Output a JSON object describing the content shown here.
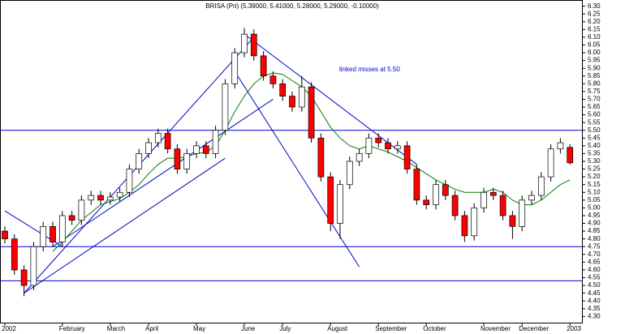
{
  "chart_data": {
    "type": "candlestick",
    "title": "BRISA (Pri) (5.39000, 5.41000, 5.28000, 5.29000, -0.10000)",
    "annotation": "linked misses at 5.50",
    "categories": [
      "2002",
      null,
      null,
      null,
      null,
      null,
      "February",
      null,
      null,
      null,
      null,
      "March",
      null,
      null,
      null,
      "April",
      null,
      null,
      null,
      null,
      "May",
      null,
      null,
      null,
      null,
      "June",
      null,
      null,
      null,
      "July",
      null,
      null,
      null,
      null,
      "August",
      null,
      null,
      null,
      null,
      "September",
      null,
      null,
      null,
      null,
      "October",
      null,
      null,
      null,
      null,
      null,
      "November",
      null,
      null,
      null,
      "December",
      null,
      null,
      null,
      null,
      "2003"
    ],
    "open": [
      4.85,
      4.8,
      4.6,
      4.5,
      4.75,
      4.88,
      4.78,
      4.95,
      4.92,
      5.05,
      5.08,
      5.05,
      5.07,
      5.1,
      5.25,
      5.35,
      5.42,
      5.48,
      5.38,
      5.25,
      5.35,
      5.4,
      5.35,
      5.5,
      5.8,
      6.0,
      6.12,
      5.98,
      5.85,
      5.8,
      5.72,
      5.65,
      5.78,
      5.45,
      5.2,
      4.9,
      5.15,
      5.3,
      5.35,
      5.45,
      5.42,
      5.38,
      5.4,
      5.25,
      5.05,
      5.02,
      5.15,
      5.08,
      4.95,
      4.82,
      5.0,
      5.1,
      5.08,
      4.95,
      4.88,
      5.05,
      5.08,
      5.2,
      5.38,
      5.39
    ],
    "high": [
      4.88,
      4.83,
      4.63,
      4.78,
      4.91,
      4.91,
      4.98,
      4.98,
      5.08,
      5.11,
      5.11,
      5.1,
      5.13,
      5.28,
      5.38,
      5.45,
      5.51,
      5.51,
      5.41,
      5.38,
      5.43,
      5.43,
      5.53,
      5.83,
      6.03,
      6.16,
      6.15,
      6.01,
      5.88,
      5.83,
      5.75,
      5.85,
      5.81,
      5.48,
      5.23,
      5.18,
      5.33,
      5.38,
      5.48,
      5.48,
      5.45,
      5.43,
      5.43,
      5.28,
      5.08,
      5.18,
      5.18,
      5.11,
      4.98,
      5.03,
      5.13,
      5.13,
      5.11,
      4.98,
      5.08,
      5.11,
      5.23,
      5.41,
      5.45,
      5.41
    ],
    "low": [
      4.77,
      4.57,
      4.43,
      4.47,
      4.72,
      4.75,
      4.75,
      4.89,
      4.89,
      5.02,
      5.02,
      5.02,
      5.04,
      5.07,
      5.22,
      5.32,
      5.39,
      5.35,
      5.22,
      5.22,
      5.32,
      5.32,
      5.32,
      5.47,
      5.77,
      5.97,
      5.95,
      5.82,
      5.77,
      5.69,
      5.62,
      5.62,
      5.42,
      5.17,
      4.85,
      4.8,
      5.12,
      5.27,
      5.32,
      5.39,
      5.35,
      5.35,
      5.22,
      5.02,
      4.99,
      4.99,
      5.05,
      4.92,
      4.78,
      4.79,
      4.97,
      5.05,
      4.92,
      4.8,
      4.85,
      5.02,
      5.05,
      5.17,
      5.35,
      5.28
    ],
    "close": [
      4.8,
      4.6,
      4.5,
      4.75,
      4.88,
      4.78,
      4.95,
      4.92,
      5.05,
      5.08,
      5.05,
      5.07,
      5.1,
      5.25,
      5.35,
      5.42,
      5.48,
      5.38,
      5.25,
      5.35,
      5.4,
      5.35,
      5.5,
      5.8,
      6.0,
      6.12,
      5.98,
      5.85,
      5.8,
      5.72,
      5.65,
      5.78,
      5.45,
      5.2,
      4.9,
      5.15,
      5.3,
      5.35,
      5.45,
      5.42,
      5.38,
      5.4,
      5.25,
      5.05,
      5.02,
      5.15,
      5.08,
      4.95,
      4.82,
      5.0,
      5.1,
      5.08,
      4.95,
      4.88,
      5.05,
      5.08,
      5.2,
      5.38,
      5.42,
      5.29
    ],
    "moving_average": {
      "color": "#008000",
      "values": [
        null,
        null,
        null,
        null,
        null,
        4.72,
        4.78,
        4.85,
        4.92,
        4.97,
        5.02,
        5.04,
        5.06,
        5.1,
        5.15,
        5.22,
        5.28,
        5.32,
        5.32,
        5.33,
        5.35,
        5.36,
        5.4,
        5.5,
        5.62,
        5.72,
        5.8,
        5.85,
        5.87,
        5.86,
        5.82,
        5.78,
        5.72,
        5.62,
        5.52,
        5.45,
        5.4,
        5.38,
        5.4,
        5.38,
        5.36,
        5.33,
        5.3,
        5.26,
        5.22,
        5.18,
        5.15,
        5.12,
        5.1,
        5.1,
        5.1,
        5.12,
        5.1,
        5.05,
        5.02,
        5.02,
        5.05,
        5.1,
        5.15,
        5.18
      ]
    },
    "up_color": "#ffffff",
    "down_color": "#ff0000",
    "line_color": "#0000cc",
    "hlines": [
      5.5,
      4.75,
      4.53
    ],
    "trendlines": [
      [
        2,
        4.45,
        26,
        6.1
      ],
      [
        2,
        4.45,
        23,
        5.32
      ],
      [
        5,
        4.75,
        28,
        5.7
      ],
      [
        0,
        4.98,
        6,
        4.75
      ],
      [
        25,
        6.12,
        43,
        5.28
      ],
      [
        24,
        5.88,
        37,
        4.62
      ]
    ],
    "ylim": [
      4.26,
      6.34
    ],
    "yticks": [
      {
        "value": 4.3,
        "label": "4.30"
      },
      {
        "value": 4.35,
        "label": "4.35"
      },
      {
        "value": 4.4,
        "label": "4.40"
      },
      {
        "value": 4.45,
        "label": "4.45"
      },
      {
        "value": 4.5,
        "label": "4.50"
      },
      {
        "value": 4.55,
        "label": "4.55"
      },
      {
        "value": 4.6,
        "label": "4.60"
      },
      {
        "value": 4.65,
        "label": "4.65"
      },
      {
        "value": 4.7,
        "label": "4.70"
      },
      {
        "value": 4.75,
        "label": "4.75"
      },
      {
        "value": 4.8,
        "label": "4.80"
      },
      {
        "value": 4.85,
        "label": "4.85"
      },
      {
        "value": 4.9,
        "label": "4.90"
      },
      {
        "value": 4.95,
        "label": "4.95"
      },
      {
        "value": 5.0,
        "label": "5.00"
      },
      {
        "value": 5.05,
        "label": "5.05"
      },
      {
        "value": 5.1,
        "label": "5.10"
      },
      {
        "value": 5.15,
        "label": "5.15"
      },
      {
        "value": 5.2,
        "label": "5.20"
      },
      {
        "value": 5.25,
        "label": "5.25"
      },
      {
        "value": 5.3,
        "label": "5.30"
      },
      {
        "value": 5.35,
        "label": "5.35"
      },
      {
        "value": 5.4,
        "label": "5.40"
      },
      {
        "value": 5.45,
        "label": "5.45"
      },
      {
        "value": 5.5,
        "label": "5.50"
      },
      {
        "value": 5.55,
        "label": "5.55"
      },
      {
        "value": 5.6,
        "label": "5.60"
      },
      {
        "value": 5.65,
        "label": "5.65"
      },
      {
        "value": 5.7,
        "label": "5.70"
      },
      {
        "value": 5.75,
        "label": "5.75"
      },
      {
        "value": 5.8,
        "label": "5.80"
      },
      {
        "value": 5.85,
        "label": "5.85"
      },
      {
        "value": 5.9,
        "label": "5.90"
      },
      {
        "value": 5.95,
        "label": "5.95"
      },
      {
        "value": 6.0,
        "label": "6.00"
      },
      {
        "value": 6.05,
        "label": "6.05"
      },
      {
        "value": 6.1,
        "label": "6.10"
      },
      {
        "value": 6.15,
        "label": "6.15"
      },
      {
        "value": 6.2,
        "label": "6.20"
      },
      {
        "value": 6.25,
        "label": "6.25"
      },
      {
        "value": 6.3,
        "label": "6.30"
      }
    ]
  }
}
